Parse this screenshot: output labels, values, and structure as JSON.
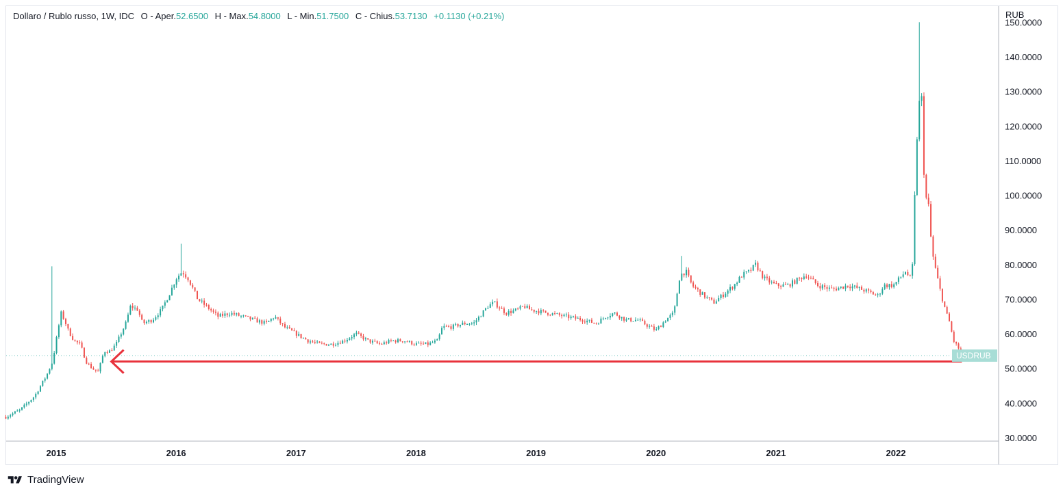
{
  "legend": {
    "symbol": "Dollaro / Rublo russo, 1W, IDC",
    "o_label": "O - Aper.",
    "o_value": "52.6500",
    "h_label": "H - Max.",
    "h_value": "54.8000",
    "l_label": "L - Min.",
    "l_value": "51.7500",
    "c_label": "C - Chius.",
    "c_value": "53.7130",
    "change": "+0.1130 (+0.21%)"
  },
  "currency": "RUB",
  "brand": "TradingView",
  "colors": {
    "up": "#26a69a",
    "down": "#ef5350",
    "arrow": "#e8323c",
    "tag": "#a8ddd6"
  },
  "chart_data": {
    "type": "candlestick",
    "symbol": "USDRUB",
    "interval": "1W",
    "y_axis": {
      "range": [
        28,
        152
      ],
      "ticks": [
        30,
        40,
        50,
        60,
        70,
        80,
        90,
        100,
        110,
        120,
        130,
        140,
        150
      ],
      "tick_labels": [
        "30.0000",
        "40.0000",
        "50.0000",
        "60.0000",
        "70.0000",
        "80.0000",
        "90.0000",
        "100.0000",
        "110.0000",
        "120.0000",
        "130.0000",
        "140.0000",
        "150.0000"
      ]
    },
    "x_axis": {
      "range": [
        2014.58,
        2022.97
      ],
      "ticks": [
        2015,
        2016,
        2017,
        2018,
        2019,
        2020,
        2021,
        2022
      ],
      "tick_labels": [
        "2015",
        "2016",
        "2017",
        "2018",
        "2019",
        "2020",
        "2021",
        "2022"
      ]
    },
    "last_price": 53.713,
    "last_price_label": "USDRUB",
    "anchors": [
      [
        2014.58,
        36
      ],
      [
        2014.7,
        38
      ],
      [
        2014.82,
        42
      ],
      [
        2014.92,
        48
      ],
      [
        2014.97,
        52
      ],
      [
        2015.0,
        58
      ],
      [
        2015.04,
        66
      ],
      [
        2015.07,
        64
      ],
      [
        2015.1,
        61
      ],
      [
        2015.15,
        58
      ],
      [
        2015.2,
        57
      ],
      [
        2015.25,
        52
      ],
      [
        2015.3,
        50
      ],
      [
        2015.35,
        49
      ],
      [
        2015.4,
        55
      ],
      [
        2015.45,
        55
      ],
      [
        2015.5,
        57
      ],
      [
        2015.58,
        63
      ],
      [
        2015.62,
        68
      ],
      [
        2015.68,
        67
      ],
      [
        2015.72,
        63
      ],
      [
        2015.8,
        64
      ],
      [
        2015.88,
        67
      ],
      [
        2015.95,
        72
      ],
      [
        2016.0,
        76
      ],
      [
        2016.05,
        78
      ],
      [
        2016.1,
        76
      ],
      [
        2016.18,
        70
      ],
      [
        2016.25,
        68
      ],
      [
        2016.35,
        65
      ],
      [
        2016.45,
        66
      ],
      [
        2016.55,
        65
      ],
      [
        2016.65,
        64
      ],
      [
        2016.75,
        63
      ],
      [
        2016.82,
        65
      ],
      [
        2016.9,
        62
      ],
      [
        2017.0,
        60
      ],
      [
        2017.1,
        58
      ],
      [
        2017.2,
        57
      ],
      [
        2017.3,
        57
      ],
      [
        2017.4,
        58
      ],
      [
        2017.5,
        60
      ],
      [
        2017.6,
        58
      ],
      [
        2017.7,
        57
      ],
      [
        2017.8,
        58
      ],
      [
        2017.9,
        58
      ],
      [
        2018.0,
        57
      ],
      [
        2018.1,
        57
      ],
      [
        2018.18,
        58
      ],
      [
        2018.22,
        62
      ],
      [
        2018.3,
        62
      ],
      [
        2018.4,
        63
      ],
      [
        2018.48,
        63
      ],
      [
        2018.6,
        68
      ],
      [
        2018.65,
        69
      ],
      [
        2018.75,
        66
      ],
      [
        2018.85,
        67
      ],
      [
        2018.9,
        68
      ],
      [
        2018.95,
        67
      ],
      [
        2019.1,
        66
      ],
      [
        2019.25,
        65
      ],
      [
        2019.4,
        64
      ],
      [
        2019.5,
        63
      ],
      [
        2019.58,
        65
      ],
      [
        2019.65,
        66
      ],
      [
        2019.75,
        64
      ],
      [
        2019.85,
        64
      ],
      [
        2019.95,
        62
      ],
      [
        2020.0,
        61
      ],
      [
        2020.08,
        64
      ],
      [
        2020.15,
        66
      ],
      [
        2020.2,
        77
      ],
      [
        2020.25,
        78
      ],
      [
        2020.3,
        74
      ],
      [
        2020.4,
        71
      ],
      [
        2020.48,
        69
      ],
      [
        2020.55,
        71
      ],
      [
        2020.65,
        74
      ],
      [
        2020.72,
        77
      ],
      [
        2020.78,
        78
      ],
      [
        2020.83,
        80
      ],
      [
        2020.9,
        76
      ],
      [
        2021.0,
        74
      ],
      [
        2021.1,
        74
      ],
      [
        2021.2,
        76
      ],
      [
        2021.25,
        77
      ],
      [
        2021.35,
        74
      ],
      [
        2021.45,
        73
      ],
      [
        2021.5,
        73
      ],
      [
        2021.6,
        74
      ],
      [
        2021.7,
        73
      ],
      [
        2021.78,
        72
      ],
      [
        2021.85,
        71
      ],
      [
        2021.9,
        74
      ],
      [
        2021.98,
        74
      ],
      [
        2022.03,
        76
      ],
      [
        2022.08,
        78
      ],
      [
        2022.12,
        76
      ],
      [
        2022.14,
        80
      ],
      [
        2022.16,
        103
      ],
      [
        2022.18,
        120
      ],
      [
        2022.21,
        133
      ],
      [
        2022.24,
        100
      ],
      [
        2022.27,
        98
      ],
      [
        2022.3,
        84
      ],
      [
        2022.34,
        77
      ],
      [
        2022.38,
        71
      ],
      [
        2022.42,
        66
      ],
      [
        2022.45,
        63
      ],
      [
        2022.48,
        58
      ],
      [
        2022.52,
        56
      ],
      [
        2022.55,
        53.7
      ]
    ],
    "annotations": [
      {
        "type": "horizontal-arrow",
        "price": 52,
        "from_x": 2022.55,
        "to_x": 2015.46,
        "color": "#e8323c"
      }
    ]
  }
}
